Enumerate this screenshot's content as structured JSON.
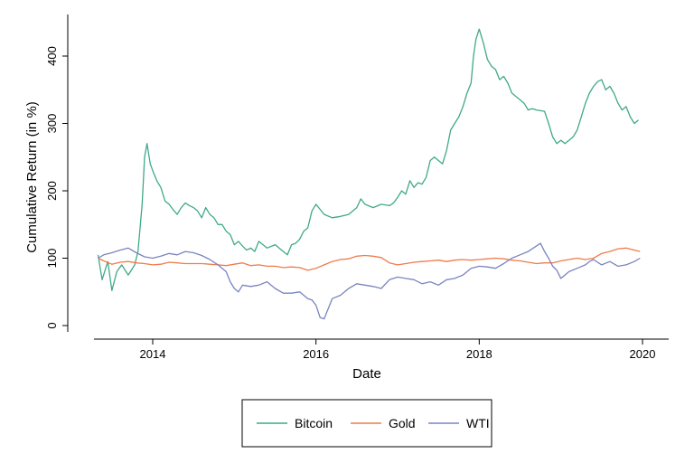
{
  "chart_data": {
    "type": "line",
    "title": "",
    "xlabel": "Date",
    "ylabel": "Cumulative Return (in %)",
    "xlim": [
      2013.2,
      2020.3
    ],
    "ylim": [
      -10,
      450
    ],
    "x_ticks": [
      2014,
      2016,
      2018,
      2020
    ],
    "x_tick_labels": [
      "2014",
      "2016",
      "2018",
      "2020"
    ],
    "y_ticks": [
      0,
      100,
      200,
      300,
      400
    ],
    "y_tick_labels": [
      "0",
      "100",
      "200",
      "300",
      "400"
    ],
    "grid": false,
    "legend_position": "bottom",
    "series": [
      {
        "name": "Bitcoin",
        "color": "#3fa98a",
        "x": [
          2013.33,
          2013.38,
          2013.45,
          2013.5,
          2013.56,
          2013.62,
          2013.7,
          2013.78,
          2013.82,
          2013.87,
          2013.9,
          2013.93,
          2013.97,
          2014.0,
          2014.05,
          2014.1,
          2014.15,
          2014.2,
          2014.25,
          2014.3,
          2014.35,
          2014.4,
          2014.45,
          2014.5,
          2014.55,
          2014.6,
          2014.65,
          2014.7,
          2014.75,
          2014.8,
          2014.85,
          2014.9,
          2014.95,
          2015.0,
          2015.05,
          2015.1,
          2015.15,
          2015.2,
          2015.25,
          2015.3,
          2015.4,
          2015.5,
          2015.6,
          2015.65,
          2015.7,
          2015.75,
          2015.8,
          2015.85,
          2015.9,
          2015.95,
          2016.0,
          2016.1,
          2016.2,
          2016.3,
          2016.4,
          2016.5,
          2016.55,
          2016.6,
          2016.7,
          2016.8,
          2016.9,
          2016.95,
          2017.0,
          2017.05,
          2017.1,
          2017.15,
          2017.2,
          2017.25,
          2017.3,
          2017.35,
          2017.4,
          2017.45,
          2017.5,
          2017.55,
          2017.6,
          2017.65,
          2017.7,
          2017.75,
          2017.8,
          2017.85,
          2017.9,
          2017.93,
          2017.96,
          2018.0,
          2018.05,
          2018.1,
          2018.15,
          2018.2,
          2018.25,
          2018.3,
          2018.35,
          2018.4,
          2018.45,
          2018.5,
          2018.55,
          2018.6,
          2018.65,
          2018.7,
          2018.8,
          2018.85,
          2018.9,
          2018.95,
          2019.0,
          2019.05,
          2019.1,
          2019.15,
          2019.2,
          2019.25,
          2019.3,
          2019.35,
          2019.4,
          2019.45,
          2019.5,
          2019.55,
          2019.6,
          2019.65,
          2019.7,
          2019.75,
          2019.8,
          2019.85,
          2019.9,
          2019.95
        ],
        "y": [
          105,
          68,
          95,
          52,
          80,
          90,
          75,
          90,
          110,
          180,
          250,
          270,
          240,
          230,
          215,
          205,
          185,
          180,
          172,
          165,
          175,
          182,
          178,
          175,
          170,
          160,
          175,
          165,
          160,
          150,
          150,
          140,
          135,
          120,
          125,
          118,
          112,
          115,
          110,
          125,
          115,
          120,
          110,
          105,
          120,
          122,
          128,
          140,
          145,
          170,
          180,
          165,
          160,
          162,
          165,
          175,
          188,
          180,
          175,
          180,
          178,
          182,
          190,
          200,
          195,
          215,
          205,
          212,
          210,
          220,
          245,
          250,
          245,
          240,
          260,
          290,
          300,
          310,
          325,
          345,
          360,
          400,
          425,
          440,
          420,
          395,
          385,
          380,
          365,
          370,
          360,
          345,
          340,
          335,
          330,
          320,
          322,
          320,
          318,
          300,
          280,
          270,
          275,
          270,
          275,
          280,
          290,
          310,
          330,
          345,
          355,
          362,
          365,
          350,
          355,
          345,
          330,
          320,
          325,
          310,
          300,
          305
        ]
      },
      {
        "name": "Gold",
        "color": "#f07b4c",
        "x": [
          2013.33,
          2013.4,
          2013.5,
          2013.6,
          2013.7,
          2013.8,
          2013.9,
          2014.0,
          2014.1,
          2014.2,
          2014.3,
          2014.4,
          2014.5,
          2014.6,
          2014.7,
          2014.8,
          2014.9,
          2015.0,
          2015.1,
          2015.2,
          2015.3,
          2015.4,
          2015.5,
          2015.6,
          2015.7,
          2015.8,
          2015.9,
          2016.0,
          2016.1,
          2016.2,
          2016.3,
          2016.4,
          2016.5,
          2016.6,
          2016.7,
          2016.8,
          2016.9,
          2017.0,
          2017.1,
          2017.2,
          2017.3,
          2017.4,
          2017.5,
          2017.6,
          2017.7,
          2017.8,
          2017.9,
          2018.0,
          2018.1,
          2018.2,
          2018.3,
          2018.4,
          2018.5,
          2018.6,
          2018.7,
          2018.8,
          2018.9,
          2019.0,
          2019.1,
          2019.2,
          2019.3,
          2019.4,
          2019.5,
          2019.6,
          2019.7,
          2019.8,
          2019.9,
          2019.97
        ],
        "y": [
          100,
          96,
          91,
          94,
          95,
          93,
          92,
          90,
          91,
          94,
          93,
          92,
          92,
          92,
          91,
          90,
          89,
          91,
          93,
          89,
          90,
          88,
          88,
          86,
          87,
          86,
          82,
          85,
          90,
          95,
          98,
          99,
          103,
          104,
          103,
          101,
          93,
          90,
          92,
          94,
          95,
          96,
          97,
          95,
          97,
          98,
          97,
          98,
          99,
          100,
          99,
          97,
          96,
          94,
          92,
          93,
          93,
          96,
          98,
          100,
          98,
          100,
          107,
          110,
          114,
          115,
          112,
          110
        ]
      },
      {
        "name": "WTI",
        "color": "#7a85bf",
        "x": [
          2013.33,
          2013.4,
          2013.5,
          2013.6,
          2013.7,
          2013.8,
          2013.9,
          2014.0,
          2014.1,
          2014.2,
          2014.3,
          2014.4,
          2014.5,
          2014.6,
          2014.7,
          2014.8,
          2014.85,
          2014.9,
          2014.95,
          2015.0,
          2015.05,
          2015.1,
          2015.2,
          2015.3,
          2015.4,
          2015.5,
          2015.6,
          2015.7,
          2015.8,
          2015.9,
          2015.95,
          2016.0,
          2016.05,
          2016.1,
          2016.15,
          2016.2,
          2016.3,
          2016.4,
          2016.5,
          2016.6,
          2016.7,
          2016.8,
          2016.9,
          2017.0,
          2017.1,
          2017.2,
          2017.3,
          2017.4,
          2017.5,
          2017.6,
          2017.7,
          2017.8,
          2017.9,
          2018.0,
          2018.1,
          2018.2,
          2018.3,
          2018.4,
          2018.5,
          2018.6,
          2018.7,
          2018.75,
          2018.8,
          2018.85,
          2018.9,
          2018.95,
          2019.0,
          2019.05,
          2019.1,
          2019.2,
          2019.3,
          2019.35,
          2019.4,
          2019.5,
          2019.6,
          2019.7,
          2019.8,
          2019.9,
          2019.97
        ],
        "y": [
          100,
          105,
          108,
          112,
          115,
          108,
          102,
          100,
          103,
          107,
          105,
          110,
          108,
          104,
          98,
          90,
          85,
          80,
          65,
          55,
          50,
          60,
          58,
          60,
          65,
          55,
          48,
          48,
          50,
          40,
          38,
          30,
          12,
          10,
          25,
          40,
          45,
          55,
          62,
          60,
          58,
          55,
          68,
          72,
          70,
          68,
          62,
          65,
          60,
          68,
          70,
          75,
          85,
          88,
          87,
          85,
          92,
          100,
          105,
          110,
          118,
          122,
          110,
          100,
          88,
          82,
          70,
          75,
          80,
          85,
          90,
          95,
          98,
          90,
          95,
          88,
          90,
          95,
          100
        ]
      }
    ]
  }
}
